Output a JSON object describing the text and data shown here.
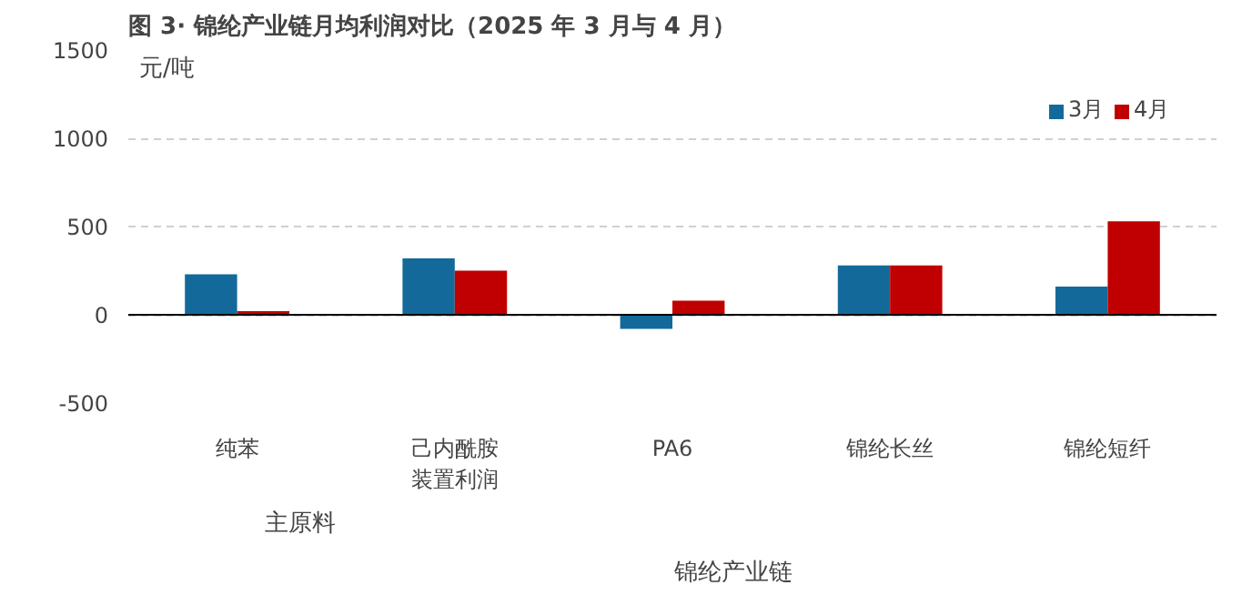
{
  "chart_data": {
    "type": "bar",
    "title": "图 3· 锦纶产业链月均利润对比（2025 年 3 月与 4 月）",
    "ylabel": "元/吨",
    "categories": [
      "纯苯",
      "己内酰胺装置利润",
      "PA6",
      "锦纶长丝",
      "锦纶短纤"
    ],
    "series": [
      {
        "name": "3月",
        "color": "#136a9a",
        "values": [
          230,
          320,
          -80,
          280,
          160
        ]
      },
      {
        "name": "4月",
        "color": "#c00000",
        "values": [
          20,
          250,
          80,
          280,
          530
        ]
      }
    ],
    "ylim": [
      -500,
      1500
    ],
    "yticks": [
      -500,
      0,
      500,
      1000,
      1500
    ],
    "grid": "y",
    "legend": "top right",
    "annotations": [
      "主原料",
      "锦纶产业链"
    ]
  }
}
